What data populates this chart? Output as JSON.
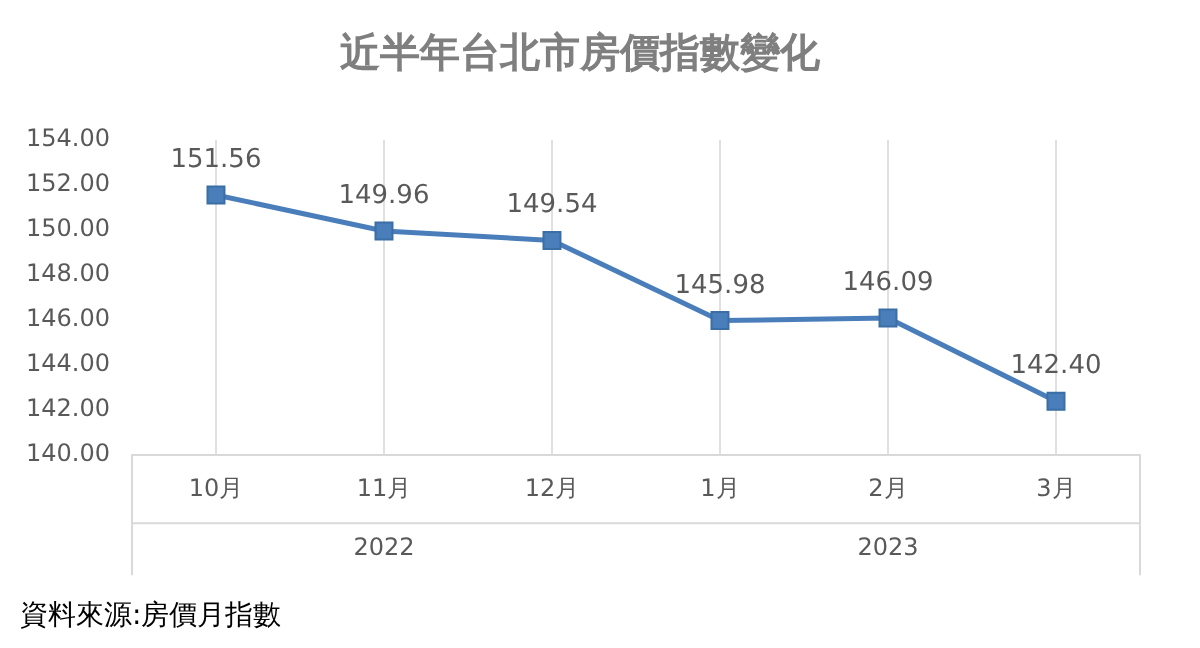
{
  "chart_data": {
    "type": "line",
    "title": "近半年台北市房價指數變化",
    "categories": [
      "10月",
      "11月",
      "12月",
      "1月",
      "2月",
      "3月"
    ],
    "series": [
      {
        "color": "#4a7ebb",
        "values": [
          151.56,
          149.96,
          149.54,
          145.98,
          146.09,
          142.4
        ]
      }
    ],
    "value_labels": [
      "151.56",
      "149.96",
      "149.54",
      "145.98",
      "146.09",
      "142.40"
    ],
    "ylim": [
      140,
      154
    ],
    "yticks": [
      {
        "value": 140,
        "label": "140.00"
      },
      {
        "value": 142,
        "label": "142.00"
      },
      {
        "value": 144,
        "label": "144.00"
      },
      {
        "value": 146,
        "label": "146.00"
      },
      {
        "value": 148,
        "label": "148.00"
      },
      {
        "value": 150,
        "label": "150.00"
      },
      {
        "value": 152,
        "label": "152.00"
      },
      {
        "value": 154,
        "label": "154.00"
      }
    ],
    "grid": "x",
    "marker": "square",
    "line_style": "solid",
    "legend": false,
    "annotations": [
      "2022",
      "2023",
      "資料來源:房價月指數"
    ]
  }
}
